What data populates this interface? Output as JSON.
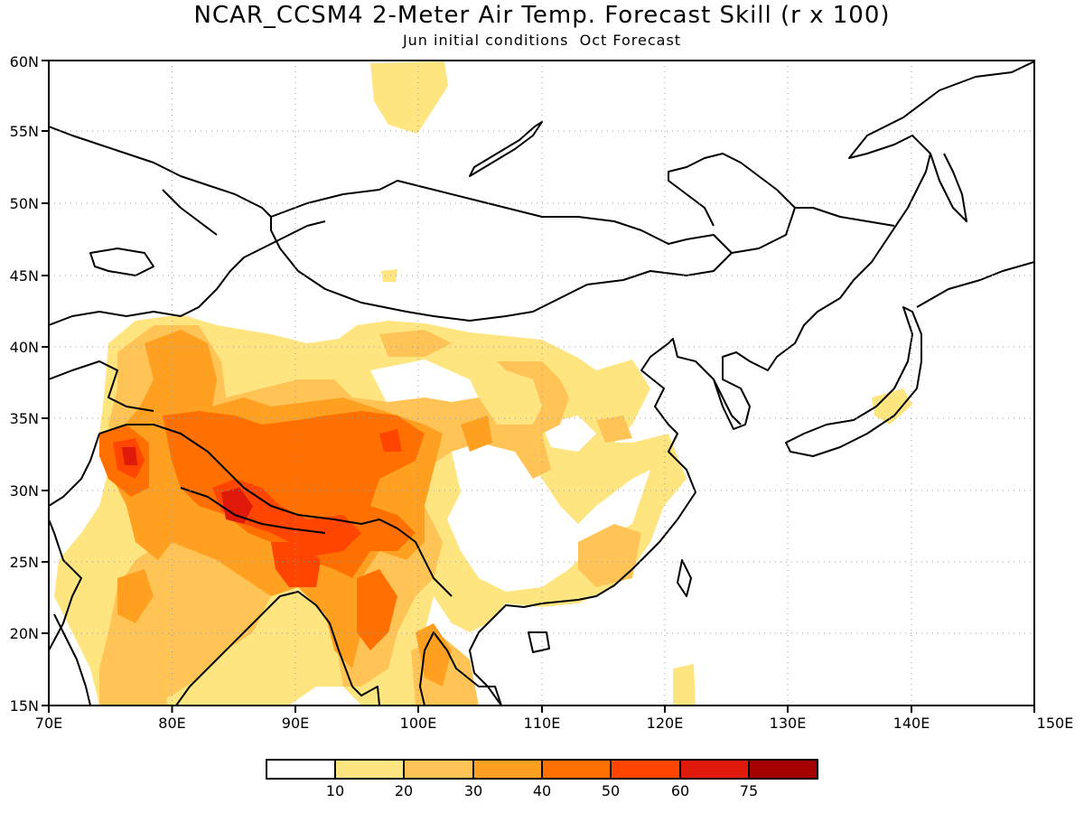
{
  "title": "NCAR_CCSM4 2-Meter Air Temp. Forecast Skill (r x 100)",
  "subtitle": "Jun initial conditions  Oct Forecast",
  "map": {
    "lon_range": [
      70,
      150
    ],
    "lat_range": [
      15,
      60
    ],
    "x_ticks": [
      "70E",
      "80E",
      "90E",
      "100E",
      "110E",
      "120E",
      "130E",
      "140E",
      "150E"
    ],
    "y_ticks": [
      "15N",
      "20N",
      "25N",
      "30N",
      "35N",
      "40N",
      "45N",
      "50N",
      "55N",
      "60N"
    ],
    "grid": "dotted"
  },
  "colorbar": {
    "labels": [
      "10",
      "20",
      "30",
      "40",
      "50",
      "60",
      "75"
    ],
    "colors": [
      "#ffffff",
      "#ffe580",
      "#ffc455",
      "#ffa020",
      "#ff7000",
      "#ff4500",
      "#e01a0a",
      "#a50000"
    ]
  }
}
